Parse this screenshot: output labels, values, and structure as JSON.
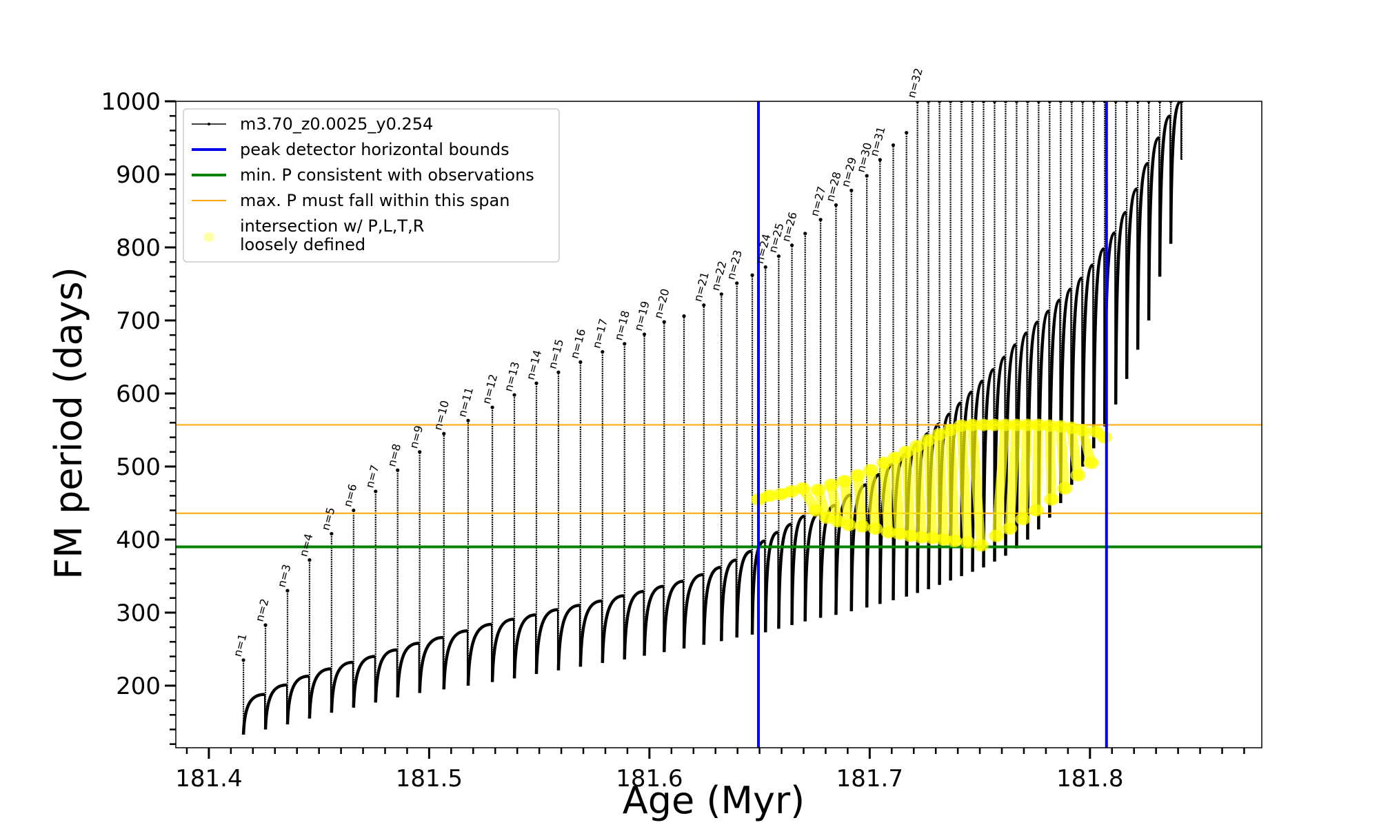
{
  "chart_data": {
    "type": "line",
    "xlabel": "Age (Myr)",
    "ylabel": "FM period (days)",
    "xlim": [
      181.385,
      181.878
    ],
    "ylim": [
      115,
      1000
    ],
    "x_ticks": [
      181.4,
      181.5,
      181.6,
      181.7,
      181.8
    ],
    "x_tick_labels": [
      "181.4",
      "181.5",
      "181.6",
      "181.7",
      "181.8"
    ],
    "x_minor_step": 0.01,
    "y_ticks": [
      200,
      300,
      400,
      500,
      600,
      700,
      800,
      900,
      1000
    ],
    "y_tick_labels": [
      "200",
      "300",
      "400",
      "500",
      "600",
      "700",
      "800",
      "900",
      "1000"
    ],
    "y_minor_step": 20,
    "grid": false,
    "legend_position": "top-left",
    "legend": [
      {
        "label": "m3.70_z0.0025_y0.254",
        "style": "line-marker",
        "color": "#000000"
      },
      {
        "label": "peak detector horizontal bounds",
        "style": "line",
        "color": "#0000ee"
      },
      {
        "label": "min. P consistent with observations",
        "style": "line",
        "color": "#008000"
      },
      {
        "label": "max. P must fall within this span",
        "style": "thin-line",
        "color": "#ffa500"
      },
      {
        "label": "intersection w/ P,L,T,R",
        "label2": "loosely defined",
        "style": "marker",
        "color": "#ffff00"
      }
    ],
    "vertical_lines": [
      {
        "name": "peak detector horizontal bounds",
        "x": 181.6495,
        "color": "#0000ee"
      },
      {
        "name": "peak detector horizontal bounds",
        "x": 181.8075,
        "color": "#0000ee"
      }
    ],
    "horizontal_lines": [
      {
        "name": "min. P consistent with observations",
        "y": 390,
        "color": "#008000"
      },
      {
        "name": "max. P must fall within this span",
        "y": 557,
        "color": "#ffa500"
      },
      {
        "name": "max. P must fall within this span",
        "y": 436,
        "color": "#ffa500"
      }
    ],
    "series": [
      {
        "name": "m3.70_z0.0025_y0.254",
        "color": "#000000",
        "pulses": [
          {
            "n": "n=1",
            "x": 181.4157,
            "min": 133,
            "base": 188,
            "peak": 235
          },
          {
            "n": "n=2",
            "x": 181.4257,
            "min": 140,
            "base": 201,
            "peak": 283
          },
          {
            "n": "n=3",
            "x": 181.4357,
            "min": 147,
            "base": 213,
            "peak": 330
          },
          {
            "n": "n=4",
            "x": 181.4457,
            "min": 155,
            "base": 223,
            "peak": 372
          },
          {
            "n": "n=5",
            "x": 181.4557,
            "min": 163,
            "base": 232,
            "peak": 408
          },
          {
            "n": "n=6",
            "x": 181.4657,
            "min": 170,
            "base": 240,
            "peak": 440
          },
          {
            "n": "n=7",
            "x": 181.4757,
            "min": 177,
            "base": 249,
            "peak": 466
          },
          {
            "n": "n=8",
            "x": 181.4857,
            "min": 184,
            "base": 258,
            "peak": 495
          },
          {
            "n": "n=9",
            "x": 181.4957,
            "min": 190,
            "base": 266,
            "peak": 520
          },
          {
            "n": "n=10",
            "x": 181.5067,
            "min": 195,
            "base": 275,
            "peak": 545
          },
          {
            "n": "n=11",
            "x": 181.5177,
            "min": 200,
            "base": 284,
            "peak": 563
          },
          {
            "n": "n=12",
            "x": 181.5287,
            "min": 205,
            "base": 291,
            "peak": 581
          },
          {
            "n": "n=13",
            "x": 181.5387,
            "min": 210,
            "base": 297,
            "peak": 598
          },
          {
            "n": "n=14",
            "x": 181.5487,
            "min": 216,
            "base": 304,
            "peak": 614
          },
          {
            "n": "n=15",
            "x": 181.5587,
            "min": 221,
            "base": 310,
            "peak": 629
          },
          {
            "n": "n=16",
            "x": 181.5687,
            "min": 226,
            "base": 316,
            "peak": 643
          },
          {
            "n": "n=17",
            "x": 181.5787,
            "min": 231,
            "base": 323,
            "peak": 657
          },
          {
            "n": "n=18",
            "x": 181.5887,
            "min": 236,
            "base": 329,
            "peak": 668
          },
          {
            "n": "n=19",
            "x": 181.5977,
            "min": 241,
            "base": 336,
            "peak": 681
          },
          {
            "n": "n=20",
            "x": 181.6067,
            "min": 246,
            "base": 343,
            "peak": 698
          },
          {
            "n": "",
            "x": 181.6157,
            "min": 251,
            "base": 352,
            "peak": 706
          },
          {
            "n": "n=21",
            "x": 181.6247,
            "min": 256,
            "base": 362,
            "peak": 721
          },
          {
            "n": "n=22",
            "x": 181.6327,
            "min": 261,
            "base": 372,
            "peak": 736
          },
          {
            "n": "n=23",
            "x": 181.6397,
            "min": 266,
            "base": 384,
            "peak": 751
          },
          {
            "n": "",
            "x": 181.6467,
            "min": 270,
            "base": 398,
            "peak": 762
          },
          {
            "n": "n=24",
            "x": 181.6527,
            "min": 273,
            "base": 410,
            "peak": 773
          },
          {
            "n": "n=25",
            "x": 181.6587,
            "min": 278,
            "base": 421,
            "peak": 788
          },
          {
            "n": "n=26",
            "x": 181.6647,
            "min": 283,
            "base": 432,
            "peak": 803
          },
          {
            "n": "",
            "x": 181.6707,
            "min": 288,
            "base": 436,
            "peak": 819
          },
          {
            "n": "n=27",
            "x": 181.6777,
            "min": 293,
            "base": 447,
            "peak": 838
          },
          {
            "n": "n=28",
            "x": 181.6847,
            "min": 297,
            "base": 461,
            "peak": 858
          },
          {
            "n": "n=29",
            "x": 181.6917,
            "min": 302,
            "base": 475,
            "peak": 878
          },
          {
            "n": "n=30",
            "x": 181.6987,
            "min": 307,
            "base": 489,
            "peak": 898
          },
          {
            "n": "n=31",
            "x": 181.7047,
            "min": 312,
            "base": 503,
            "peak": 920
          },
          {
            "n": "",
            "x": 181.7107,
            "min": 317,
            "base": 517,
            "peak": 940
          },
          {
            "n": "",
            "x": 181.7167,
            "min": 322,
            "base": 531,
            "peak": 957
          },
          {
            "n": "n=32",
            "x": 181.7217,
            "min": 327,
            "base": 545,
            "peak": 1000
          },
          {
            "n": "",
            "x": 181.7267,
            "min": 332,
            "base": 558,
            "peak": 1000
          },
          {
            "n": "",
            "x": 181.7317,
            "min": 338,
            "base": 572,
            "peak": 1000
          },
          {
            "n": "",
            "x": 181.7367,
            "min": 344,
            "base": 587,
            "peak": 1000
          },
          {
            "n": "",
            "x": 181.7417,
            "min": 350,
            "base": 602,
            "peak": 1000
          },
          {
            "n": "",
            "x": 181.7467,
            "min": 356,
            "base": 617,
            "peak": 1000
          },
          {
            "n": "",
            "x": 181.7517,
            "min": 362,
            "base": 633,
            "peak": 1000
          },
          {
            "n": "",
            "x": 181.7567,
            "min": 370,
            "base": 650,
            "peak": 1000
          },
          {
            "n": "",
            "x": 181.7617,
            "min": 378,
            "base": 667,
            "peak": 1000
          },
          {
            "n": "",
            "x": 181.7667,
            "min": 388,
            "base": 683,
            "peak": 1000
          },
          {
            "n": "",
            "x": 181.7717,
            "min": 400,
            "base": 698,
            "peak": 1000
          },
          {
            "n": "",
            "x": 181.7767,
            "min": 414,
            "base": 713,
            "peak": 1000
          },
          {
            "n": "",
            "x": 181.7817,
            "min": 430,
            "base": 728,
            "peak": 1000
          },
          {
            "n": "",
            "x": 181.7867,
            "min": 450,
            "base": 743,
            "peak": 1000
          },
          {
            "n": "",
            "x": 181.7917,
            "min": 475,
            "base": 758,
            "peak": 1000
          },
          {
            "n": "",
            "x": 181.7967,
            "min": 500,
            "base": 776,
            "peak": 1000
          },
          {
            "n": "",
            "x": 181.8017,
            "min": 525,
            "base": 798,
            "peak": 1000
          },
          {
            "n": "",
            "x": 181.8067,
            "min": 555,
            "base": 820,
            "peak": 1000
          },
          {
            "n": "",
            "x": 181.8117,
            "min": 585,
            "base": 848,
            "peak": 1000
          },
          {
            "n": "",
            "x": 181.8167,
            "min": 620,
            "base": 880,
            "peak": 1000
          },
          {
            "n": "",
            "x": 181.8217,
            "min": 660,
            "base": 915,
            "peak": 1000
          },
          {
            "n": "",
            "x": 181.8267,
            "min": 700,
            "base": 950,
            "peak": 1000
          },
          {
            "n": "",
            "x": 181.8317,
            "min": 760,
            "base": 980,
            "peak": 1000
          },
          {
            "n": "",
            "x": 181.8367,
            "min": 805,
            "base": 1000,
            "peak": 1000
          },
          {
            "n": "",
            "x": 181.8417,
            "min": 920,
            "base": 1000,
            "peak": 1000
          }
        ]
      },
      {
        "name": "intersection w/ P,L,T,R loosely defined",
        "color": "#ffff00",
        "type": "scatter",
        "points": [
          {
            "x": 181.6495,
            "y": 455
          },
          {
            "x": 181.6545,
            "y": 460
          },
          {
            "x": 181.6595,
            "y": 462
          },
          {
            "x": 181.6645,
            "y": 466
          },
          {
            "x": 181.6695,
            "y": 470
          },
          {
            "x": 181.6755,
            "y": 440
          },
          {
            "x": 181.6765,
            "y": 468
          },
          {
            "x": 181.6805,
            "y": 430
          },
          {
            "x": 181.6825,
            "y": 475
          },
          {
            "x": 181.6855,
            "y": 425
          },
          {
            "x": 181.6885,
            "y": 480
          },
          {
            "x": 181.6905,
            "y": 420
          },
          {
            "x": 181.6945,
            "y": 488
          },
          {
            "x": 181.6965,
            "y": 418
          },
          {
            "x": 181.7005,
            "y": 495
          },
          {
            "x": 181.7025,
            "y": 415
          },
          {
            "x": 181.7065,
            "y": 505
          },
          {
            "x": 181.7085,
            "y": 410
          },
          {
            "x": 181.7115,
            "y": 512
          },
          {
            "x": 181.7135,
            "y": 408
          },
          {
            "x": 181.7165,
            "y": 520
          },
          {
            "x": 181.7185,
            "y": 405
          },
          {
            "x": 181.7215,
            "y": 528
          },
          {
            "x": 181.7235,
            "y": 403
          },
          {
            "x": 181.7265,
            "y": 536
          },
          {
            "x": 181.7285,
            "y": 402
          },
          {
            "x": 181.7315,
            "y": 544
          },
          {
            "x": 181.7335,
            "y": 400
          },
          {
            "x": 181.7365,
            "y": 550
          },
          {
            "x": 181.7385,
            "y": 398
          },
          {
            "x": 181.7415,
            "y": 556
          },
          {
            "x": 181.7445,
            "y": 396
          },
          {
            "x": 181.7465,
            "y": 557
          },
          {
            "x": 181.7505,
            "y": 392
          },
          {
            "x": 181.7515,
            "y": 557
          },
          {
            "x": 181.7565,
            "y": 557
          },
          {
            "x": 181.7575,
            "y": 405
          },
          {
            "x": 181.7615,
            "y": 557
          },
          {
            "x": 181.7635,
            "y": 415
          },
          {
            "x": 181.7665,
            "y": 557
          },
          {
            "x": 181.7695,
            "y": 428
          },
          {
            "x": 181.7715,
            "y": 557
          },
          {
            "x": 181.7755,
            "y": 440
          },
          {
            "x": 181.7765,
            "y": 557
          },
          {
            "x": 181.7815,
            "y": 556
          },
          {
            "x": 181.7825,
            "y": 455
          },
          {
            "x": 181.7865,
            "y": 555
          },
          {
            "x": 181.7885,
            "y": 470
          },
          {
            "x": 181.7915,
            "y": 553
          },
          {
            "x": 181.7945,
            "y": 488
          },
          {
            "x": 181.7965,
            "y": 550
          },
          {
            "x": 181.8005,
            "y": 505
          },
          {
            "x": 181.8025,
            "y": 548
          },
          {
            "x": 181.8065,
            "y": 540
          }
        ]
      }
    ]
  }
}
